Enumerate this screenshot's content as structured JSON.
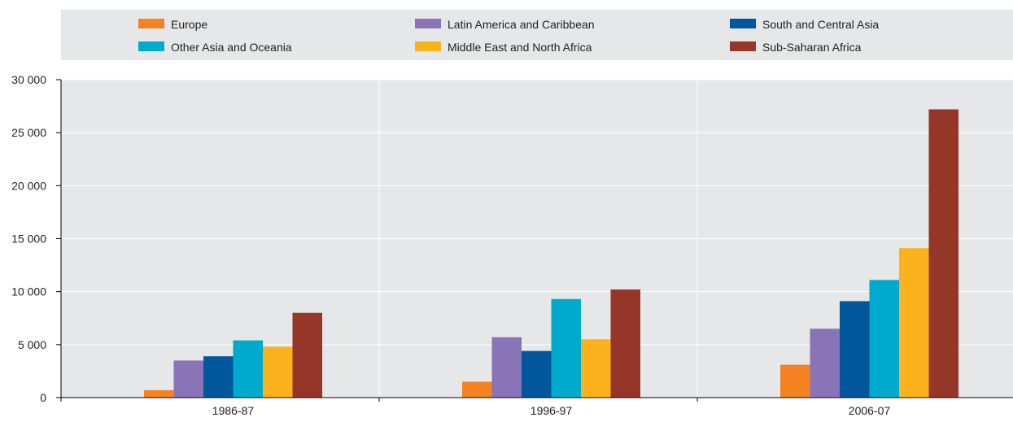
{
  "chart_data": {
    "type": "bar",
    "categories": [
      "1986-87",
      "1996-97",
      "2006-07"
    ],
    "series": [
      {
        "name": "Europe",
        "values": [
          700,
          1500,
          3100
        ]
      },
      {
        "name": "Latin America and Caribbean",
        "values": [
          3500,
          5700,
          6500
        ]
      },
      {
        "name": "South and Central Asia",
        "values": [
          3900,
          4400,
          9100
        ]
      },
      {
        "name": "Other Asia and Oceania",
        "values": [
          5400,
          9300,
          11100
        ]
      },
      {
        "name": "Middle East and North Africa",
        "values": [
          4800,
          5500,
          14100
        ]
      },
      {
        "name": "Sub-Saharan Africa",
        "values": [
          8000,
          10200,
          27200
        ]
      }
    ],
    "ylim": [
      0,
      30000
    ],
    "yticks": [
      0,
      5000,
      10000,
      15000,
      20000,
      25000,
      30000
    ],
    "ytick_labels": [
      "0",
      "5 000",
      "10 000",
      "15 000",
      "20 000",
      "25 000",
      "30 000"
    ],
    "title": "",
    "xlabel": "",
    "ylabel": "",
    "grid": true,
    "legend_position": "top"
  },
  "colors": {
    "series": [
      "#F58220",
      "#8A74B8",
      "#00579C",
      "#00AACC",
      "#FBB21C",
      "#953628"
    ],
    "plot_background": "#E6E7E8",
    "legend_background": "#E6E7E8",
    "gridline": "#FFFFFF",
    "axis": "#000000"
  }
}
